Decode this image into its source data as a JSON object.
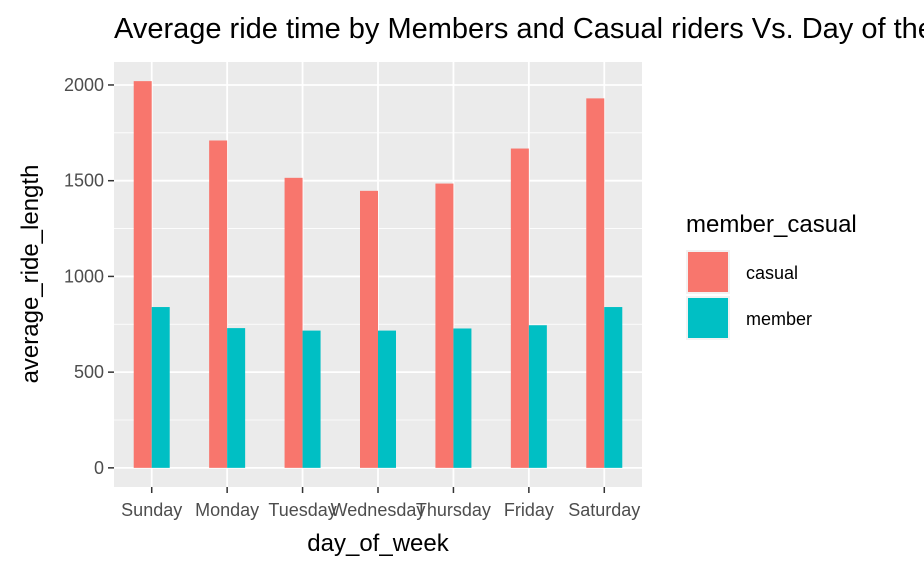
{
  "chart_data": {
    "type": "bar",
    "title": "Average ride time by Members and Casual riders Vs. Day of the week",
    "xlabel": "day_of_week",
    "ylabel": "average_ride_length",
    "categories": [
      "Sunday",
      "Monday",
      "Tuesday",
      "Wednesday",
      "Thursday",
      "Friday",
      "Saturday"
    ],
    "series": [
      {
        "name": "casual",
        "color": "#F8766D",
        "values": [
          2020,
          1710,
          1515,
          1447,
          1485,
          1668,
          1930
        ]
      },
      {
        "name": "member",
        "color": "#00BFC4",
        "values": [
          840,
          730,
          717,
          717,
          728,
          745,
          840
        ]
      }
    ],
    "yticks": [
      0,
      500,
      1000,
      1500,
      2000
    ],
    "ylim": [
      -100,
      2120
    ],
    "grid": true,
    "legend": {
      "title": "member_casual",
      "placement": "right"
    }
  }
}
